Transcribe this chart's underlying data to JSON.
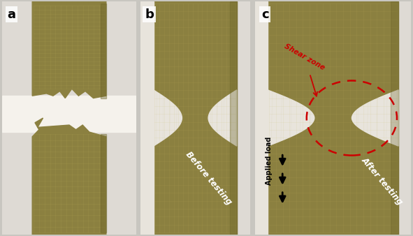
{
  "figure_width": 5.91,
  "figure_height": 3.38,
  "dpi": 100,
  "background_color": "#c8c6c0",
  "panel_labels": [
    "a",
    "b",
    "c"
  ],
  "panel_label_fontsize": 13,
  "panel_label_fontweight": "bold",
  "shear_zone_text": "Shear zone",
  "shear_zone_color": "#cc0000",
  "shear_zone_fontsize": 7.5,
  "before_testing_text": "Before testing",
  "before_testing_color": "#ffffff",
  "before_testing_fontsize": 8.5,
  "after_testing_text": "After testing",
  "after_testing_color": "#ffffff",
  "after_testing_fontsize": 8.5,
  "applied_load_text": "Applied load",
  "applied_load_color": "#000000",
  "applied_load_fontsize": 7,
  "olive_dark": "#6b6428",
  "olive_mid": "#8b8040",
  "olive_light": "#a8a050",
  "white_bg": "#f0ece4",
  "panel_white": "#e8e4dc",
  "dashed_circle_color": "#cc0000",
  "border_color": "#888880"
}
